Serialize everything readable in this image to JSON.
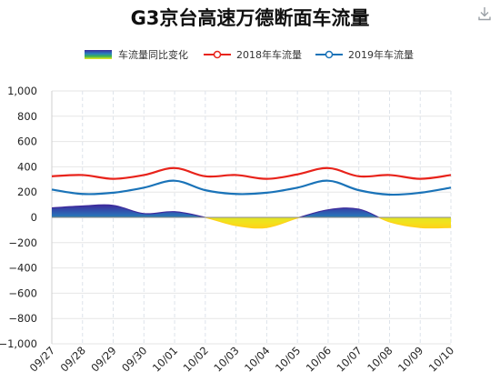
{
  "toolbar": {
    "download_icon": "download-icon"
  },
  "chart_data": {
    "type": "line",
    "title": "G3京台高速万德断面车流量",
    "categories": [
      "09/27",
      "09/28",
      "09/29",
      "09/30",
      "10/01",
      "10/02",
      "10/03",
      "10/04",
      "10/05",
      "10/06",
      "10/07",
      "10/08",
      "10/09",
      "10/10"
    ],
    "series": [
      {
        "name": "车流量同比变化",
        "kind": "area",
        "values": [
          75,
          90,
          95,
          30,
          45,
          0,
          -65,
          -80,
          -5,
          60,
          65,
          -35,
          -80,
          -80
        ]
      },
      {
        "name": "2018年车流量",
        "kind": "line",
        "color": "#e8231b",
        "values": [
          325,
          335,
          305,
          335,
          390,
          325,
          335,
          305,
          340,
          390,
          325,
          335,
          305,
          335
        ]
      },
      {
        "name": "2019年车流量",
        "kind": "line",
        "color": "#1a73b8",
        "values": [
          220,
          185,
          195,
          235,
          290,
          215,
          185,
          195,
          235,
          290,
          215,
          180,
          195,
          235
        ]
      }
    ],
    "y_ticks": [
      "1,000",
      "800",
      "600",
      "400",
      "200",
      "0",
      "−200",
      "−400",
      "−600",
      "−800",
      "−1,000"
    ],
    "ylim": [
      -1000,
      1000
    ],
    "grid": true,
    "legend_position": "top-center",
    "gradient_colors": [
      "#3a2a9a",
      "#2a7fbf",
      "#3cb44b",
      "#c8e63a",
      "#f5e81e"
    ]
  }
}
